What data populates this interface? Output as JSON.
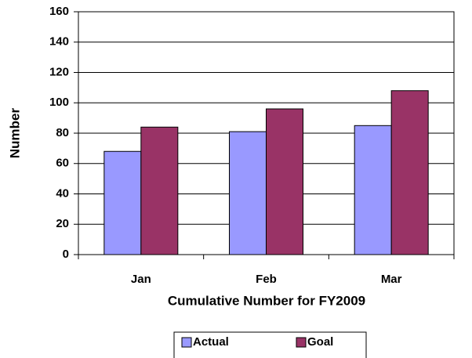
{
  "chart_data": {
    "type": "bar",
    "categories": [
      "Jan",
      "Feb",
      "Mar"
    ],
    "series": [
      {
        "name": "Actual",
        "color": "#9999ff",
        "values": [
          68,
          81,
          85
        ]
      },
      {
        "name": "Goal",
        "color": "#993366",
        "values": [
          84,
          96,
          108
        ]
      }
    ],
    "x_label": "Cumulative Number for FY2009",
    "y_label": "Number",
    "ylim": [
      0,
      160
    ],
    "yticks": [
      0,
      20,
      40,
      60,
      80,
      100,
      120,
      140,
      160
    ],
    "grid": true,
    "legend": "bottom"
  }
}
